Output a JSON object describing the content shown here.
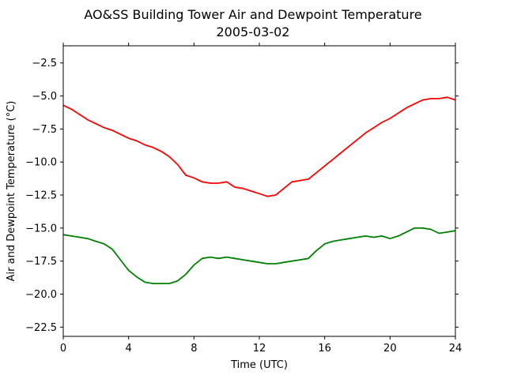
{
  "chart_data": {
    "type": "line",
    "title": "AO&SS Building Tower Air and Dewpoint Temperature",
    "subtitle": "2005-03-02",
    "xlabel": "Time (UTC)",
    "ylabel": "Air and Dewpoint Temperature (°C)",
    "xlim": [
      0,
      24
    ],
    "ylim": [
      -23.2,
      -1.2
    ],
    "xticks": [
      0,
      4,
      8,
      12,
      16,
      20,
      24
    ],
    "yticks": [
      -2.5,
      -5.0,
      -7.5,
      -10.0,
      -12.5,
      -15.0,
      -17.5,
      -20.0,
      -22.5
    ],
    "grid": false,
    "series": [
      {
        "color": "#ff0000",
        "x": [
          0,
          0.5,
          1,
          1.5,
          2,
          2.5,
          3,
          3.5,
          4,
          4.5,
          5,
          5.5,
          6,
          6.5,
          7,
          7.5,
          8,
          8.5,
          9,
          9.5,
          10,
          10.5,
          11,
          11.5,
          12,
          12.5,
          13,
          13.5,
          14,
          14.5,
          15,
          15.5,
          16,
          16.5,
          17,
          17.5,
          18,
          18.5,
          19,
          19.5,
          20,
          20.5,
          21,
          21.5,
          22,
          22.5,
          23,
          23.5,
          24
        ],
        "y": [
          -5.7,
          -6.0,
          -6.4,
          -6.8,
          -7.1,
          -7.4,
          -7.6,
          -7.9,
          -8.2,
          -8.4,
          -8.7,
          -8.9,
          -9.2,
          -9.6,
          -10.2,
          -11.0,
          -11.2,
          -11.5,
          -11.6,
          -11.6,
          -11.5,
          -11.9,
          -12.0,
          -12.2,
          -12.4,
          -12.6,
          -12.5,
          -12.0,
          -11.5,
          -11.4,
          -11.3,
          -10.8,
          -10.3,
          -9.8,
          -9.3,
          -8.8,
          -8.3,
          -7.8,
          -7.4,
          -7.0,
          -6.7,
          -6.3,
          -5.9,
          -5.6,
          -5.3,
          -5.2,
          -5.2,
          -5.1,
          -5.3
        ]
      },
      {
        "color": "#008000",
        "x": [
          0,
          0.5,
          1,
          1.5,
          2,
          2.5,
          3,
          3.5,
          4,
          4.5,
          5,
          5.5,
          6,
          6.5,
          7,
          7.5,
          8,
          8.5,
          9,
          9.5,
          10,
          10.5,
          11,
          11.5,
          12,
          12.5,
          13,
          13.5,
          14,
          14.5,
          15,
          15.5,
          16,
          16.5,
          17,
          17.5,
          18,
          18.5,
          19,
          19.5,
          20,
          20.5,
          21,
          21.5,
          22,
          22.5,
          23,
          23.5,
          24
        ],
        "y": [
          -15.5,
          -15.6,
          -15.7,
          -15.8,
          -16.0,
          -16.2,
          -16.6,
          -17.4,
          -18.2,
          -18.7,
          -19.1,
          -19.2,
          -19.2,
          -19.2,
          -19.0,
          -18.5,
          -17.8,
          -17.3,
          -17.2,
          -17.3,
          -17.2,
          -17.3,
          -17.4,
          -17.5,
          -17.6,
          -17.7,
          -17.7,
          -17.6,
          -17.5,
          -17.4,
          -17.3,
          -16.7,
          -16.2,
          -16.0,
          -15.9,
          -15.8,
          -15.7,
          -15.6,
          -15.7,
          -15.6,
          -15.8,
          -15.6,
          -15.3,
          -15.0,
          -15.0,
          -15.1,
          -15.4,
          -15.3,
          -15.2
        ]
      }
    ]
  }
}
